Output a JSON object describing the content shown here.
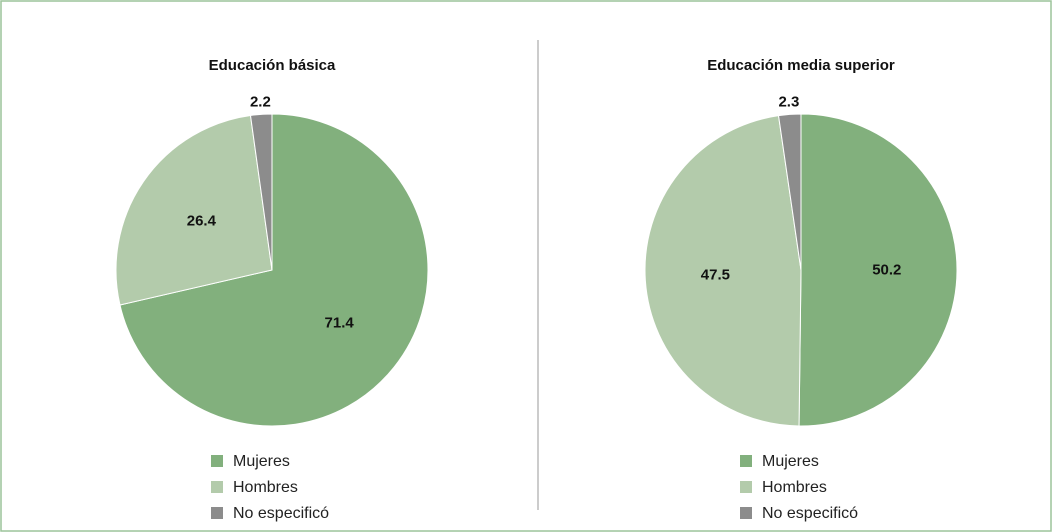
{
  "chart_data": [
    {
      "type": "pie",
      "title": "Educación básica",
      "categories": [
        "Mujeres",
        "Hombres",
        "No especificó"
      ],
      "values": [
        71.4,
        26.4,
        2.2
      ],
      "colors": [
        "#82b07d",
        "#b3cbab",
        "#8c8c8c"
      ]
    },
    {
      "type": "pie",
      "title": "Educación media superior",
      "categories": [
        "Mujeres",
        "Hombres",
        "No especificó"
      ],
      "values": [
        50.2,
        47.5,
        2.3
      ],
      "colors": [
        "#82b07d",
        "#b3cbab",
        "#8c8c8c"
      ]
    }
  ]
}
